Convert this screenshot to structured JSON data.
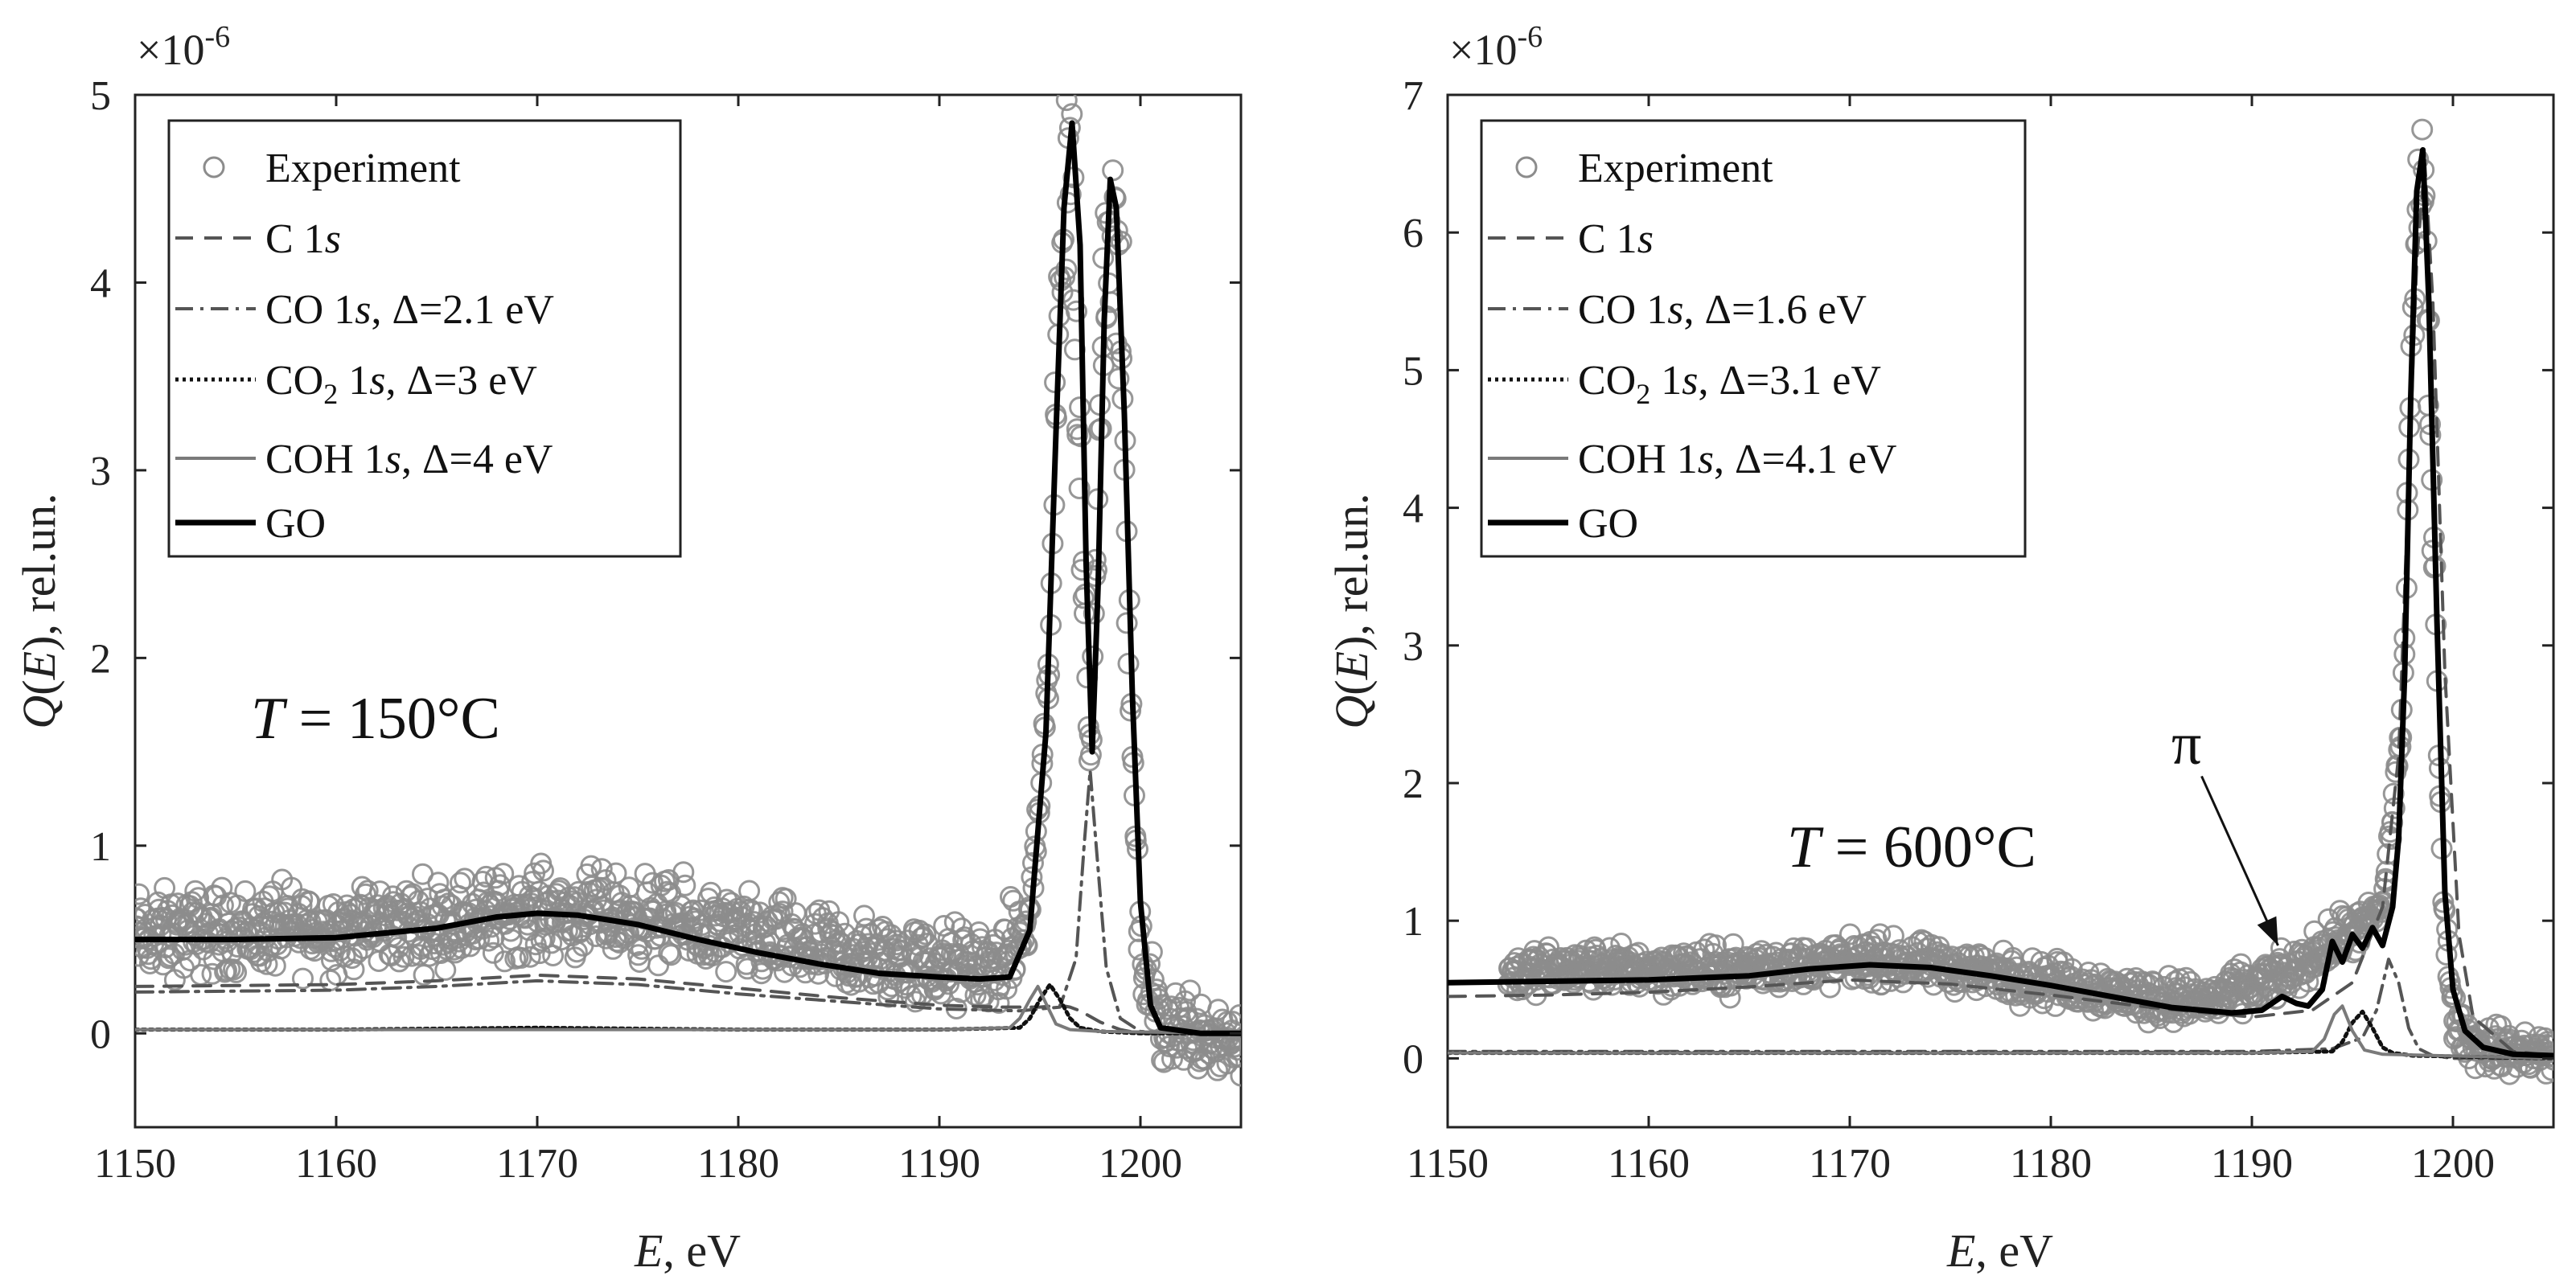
{
  "colors": {
    "experiment": "#8c8c8c",
    "go": "#000000",
    "c1s": "#555555",
    "co1s": "#555555",
    "co2_1s": "#111111",
    "coh1s": "#7a7a7a",
    "axis": "#222222"
  },
  "chart_data": [
    {
      "type": "scatter",
      "title": "",
      "xlabel_italic": "E",
      "xlabel_rest": ", eV",
      "ylabel_italic_1": "Q",
      "ylabel_mid": "(",
      "ylabel_italic_2": "E",
      "ylabel_rest": "), rel.un.",
      "y_multiplier": "×10",
      "y_multiplier_exp": "-6",
      "xlim": [
        1150,
        1205
      ],
      "ylim": [
        -0.5,
        5
      ],
      "xticks": [
        1150,
        1160,
        1170,
        1180,
        1190,
        1200
      ],
      "yticks": [
        0,
        1,
        2,
        3,
        4,
        5
      ],
      "legend_position": "top-left",
      "legend": {
        "experiment": "Experiment",
        "c1s_prefix": "C 1",
        "c1s_italic": "s",
        "co_prefix": "CO 1",
        "co_italic": "s",
        "co_suffix": ", Δ=2.1 eV",
        "co2_prefix": "CO",
        "co2_sub": "2",
        "co2_mid": " 1",
        "co2_italic": "s",
        "co2_suffix": ", Δ=3 eV",
        "coh_prefix": "COH 1",
        "coh_italic": "s",
        "coh_suffix": ", Δ=4 eV",
        "go": "GO"
      },
      "annotation": {
        "italic": "T",
        "rest": " = 150°C"
      },
      "experiment_envelope": {
        "x": [
          1150,
          1155,
          1160,
          1165,
          1170,
          1175,
          1180,
          1185,
          1190,
          1193,
          1194.5,
          1195.5,
          1196.0,
          1196.5,
          1197.0,
          1197.5,
          1198.0,
          1198.5,
          1199.0,
          1199.5,
          1200.0,
          1201,
          1203,
          1205
        ],
        "y": [
          0.52,
          0.55,
          0.56,
          0.6,
          0.65,
          0.62,
          0.52,
          0.42,
          0.36,
          0.35,
          0.6,
          2.0,
          4.0,
          4.8,
          3.0,
          1.4,
          3.5,
          4.5,
          3.9,
          1.8,
          0.4,
          0.05,
          0.02,
          -0.05
        ],
        "spread": 0.22
      },
      "series": [
        {
          "name": "GO",
          "style": "solid-thick",
          "x": [
            1150,
            1155,
            1160,
            1165,
            1168,
            1170,
            1172,
            1175,
            1178,
            1181,
            1184,
            1187,
            1190,
            1192,
            1193.5,
            1194.5,
            1195.3,
            1195.8,
            1196.2,
            1196.6,
            1197.0,
            1197.3,
            1197.6,
            1197.9,
            1198.2,
            1198.5,
            1198.8,
            1199.2,
            1199.6,
            1200.0,
            1200.5,
            1201.0,
            1203,
            1205
          ],
          "y": [
            0.5,
            0.5,
            0.51,
            0.56,
            0.62,
            0.64,
            0.63,
            0.58,
            0.5,
            0.43,
            0.37,
            0.32,
            0.3,
            0.29,
            0.3,
            0.55,
            1.6,
            3.2,
            4.4,
            4.85,
            4.2,
            2.5,
            1.5,
            2.4,
            3.8,
            4.55,
            4.4,
            3.3,
            1.8,
            0.7,
            0.15,
            0.03,
            0.0,
            0.0
          ]
        },
        {
          "name": "C 1s",
          "style": "dash",
          "x": [
            1150,
            1160,
            1165,
            1170,
            1175,
            1180,
            1185,
            1190,
            1193,
            1195,
            1196,
            1196.5,
            1197,
            1198,
            1199,
            1200,
            1202,
            1205
          ],
          "y": [
            0.25,
            0.26,
            0.28,
            0.31,
            0.29,
            0.24,
            0.19,
            0.15,
            0.14,
            0.14,
            0.15,
            0.14,
            0.12,
            0.06,
            0.02,
            0.0,
            0.0,
            0.0
          ]
        },
        {
          "name": "CO 1s",
          "style": "dashdot",
          "x": [
            1150,
            1160,
            1165,
            1170,
            1175,
            1180,
            1185,
            1190,
            1194,
            1196,
            1196.8,
            1197.2,
            1197.5,
            1197.8,
            1198.3,
            1199,
            1200,
            1202,
            1205
          ],
          "y": [
            0.22,
            0.23,
            0.25,
            0.28,
            0.26,
            0.21,
            0.17,
            0.13,
            0.12,
            0.14,
            0.4,
            1.0,
            1.4,
            1.0,
            0.35,
            0.08,
            0.01,
            0.0,
            0.0
          ]
        },
        {
          "name": "CO2 1s",
          "style": "dot",
          "x": [
            1150,
            1160,
            1170,
            1180,
            1190,
            1194.0,
            1194.5,
            1195.0,
            1195.5,
            1196.0,
            1196.5,
            1197.0,
            1198,
            1200,
            1205
          ],
          "y": [
            0.02,
            0.02,
            0.03,
            0.02,
            0.02,
            0.03,
            0.08,
            0.18,
            0.26,
            0.18,
            0.08,
            0.03,
            0.01,
            0.0,
            0.0
          ]
        },
        {
          "name": "COH 1s",
          "style": "solid-grey",
          "x": [
            1150,
            1160,
            1170,
            1180,
            1190,
            1193.5,
            1194.0,
            1194.5,
            1194.9,
            1195.3,
            1195.8,
            1196.5,
            1198,
            1205
          ],
          "y": [
            0.02,
            0.02,
            0.02,
            0.02,
            0.02,
            0.03,
            0.08,
            0.18,
            0.25,
            0.16,
            0.05,
            0.02,
            0.01,
            0.0
          ]
        }
      ]
    },
    {
      "type": "scatter",
      "title": "",
      "xlabel_italic": "E",
      "xlabel_rest": ", eV",
      "ylabel_italic_1": "Q",
      "ylabel_mid": "(",
      "ylabel_italic_2": "E",
      "ylabel_rest": "), rel.un.",
      "y_multiplier": "×10",
      "y_multiplier_exp": "-6",
      "xlim": [
        1150,
        1205
      ],
      "ylim": [
        -0.5,
        7
      ],
      "xticks": [
        1150,
        1160,
        1170,
        1180,
        1190,
        1200
      ],
      "yticks": [
        0,
        1,
        2,
        3,
        4,
        5,
        6,
        7
      ],
      "legend_position": "top-left",
      "legend": {
        "experiment": "Experiment",
        "c1s_prefix": "C 1",
        "c1s_italic": "s",
        "co_prefix": "CO 1",
        "co_italic": "s",
        "co_suffix": ", Δ=1.6 eV",
        "co2_prefix": "CO",
        "co2_sub": "2",
        "co2_mid": " 1",
        "co2_italic": "s",
        "co2_suffix": ", Δ=3.1 eV",
        "coh_prefix": "COH 1",
        "coh_italic": "s",
        "coh_suffix": ", Δ=4.1 eV",
        "go": "GO"
      },
      "annotation": {
        "italic": "T",
        "rest": " = 600°C"
      },
      "pi_label": "π",
      "pi_arrow": {
        "from": [
          1187.5,
          2.05
        ],
        "to": [
          1191.3,
          0.82
        ]
      },
      "experiment_envelope": {
        "x": [
          1153,
          1158,
          1163,
          1168,
          1171,
          1175,
          1180,
          1185,
          1188,
          1190,
          1192,
          1194,
          1195.5,
          1196.5,
          1197.5,
          1198.0,
          1198.5,
          1199.0,
          1199.5,
          1200.0,
          1201,
          1203,
          1205
        ],
        "y": [
          0.62,
          0.66,
          0.64,
          0.68,
          0.72,
          0.66,
          0.56,
          0.44,
          0.42,
          0.52,
          0.62,
          0.85,
          0.95,
          1.1,
          2.5,
          5.5,
          6.6,
          4.0,
          1.2,
          0.3,
          0.1,
          0.05,
          0.02
        ],
        "spread": 0.16
      },
      "series": [
        {
          "name": "GO",
          "style": "solid-thick",
          "x": [
            1150,
            1155,
            1160,
            1165,
            1168,
            1171,
            1174,
            1177,
            1180,
            1183,
            1186,
            1189,
            1190.5,
            1191.5,
            1192.2,
            1192.8,
            1193.5,
            1194.0,
            1194.5,
            1195.0,
            1195.5,
            1196.0,
            1196.5,
            1197.0,
            1197.3,
            1197.6,
            1197.9,
            1198.2,
            1198.5,
            1198.8,
            1199.2,
            1199.6,
            1200.0,
            1200.6,
            1201.5,
            1203,
            1205
          ],
          "y": [
            0.55,
            0.56,
            0.57,
            0.6,
            0.65,
            0.68,
            0.66,
            0.6,
            0.53,
            0.45,
            0.37,
            0.33,
            0.35,
            0.45,
            0.4,
            0.38,
            0.5,
            0.85,
            0.7,
            0.9,
            0.8,
            0.95,
            0.82,
            1.1,
            1.6,
            2.8,
            4.8,
            6.3,
            6.6,
            5.5,
            3.2,
            1.2,
            0.5,
            0.2,
            0.08,
            0.03,
            0.02
          ]
        },
        {
          "name": "C 1s",
          "style": "dash",
          "x": [
            1150,
            1155,
            1160,
            1165,
            1170,
            1175,
            1180,
            1185,
            1190,
            1193,
            1195,
            1196.5,
            1197.3,
            1197.8,
            1198.2,
            1198.6,
            1199,
            1199.6,
            1200.3,
            1201,
            1203,
            1205
          ],
          "y": [
            0.45,
            0.46,
            0.48,
            0.52,
            0.57,
            0.54,
            0.46,
            0.37,
            0.3,
            0.35,
            0.55,
            1.1,
            2.2,
            4.2,
            5.8,
            6.5,
            5.5,
            2.8,
            0.9,
            0.3,
            0.05,
            0.02
          ]
        },
        {
          "name": "CO 1s",
          "style": "dashdot",
          "x": [
            1150,
            1160,
            1170,
            1180,
            1190,
            1194,
            1195.5,
            1196.2,
            1196.8,
            1197.3,
            1197.8,
            1198.3,
            1199,
            1200,
            1205
          ],
          "y": [
            0.05,
            0.05,
            0.05,
            0.05,
            0.05,
            0.07,
            0.15,
            0.35,
            0.72,
            0.55,
            0.22,
            0.07,
            0.02,
            0.0,
            0.0
          ]
        },
        {
          "name": "CO2 1s",
          "style": "dot",
          "x": [
            1150,
            1160,
            1170,
            1180,
            1190,
            1194.0,
            1194.5,
            1195.0,
            1195.5,
            1196.0,
            1196.5,
            1197.0,
            1198,
            1205
          ],
          "y": [
            0.04,
            0.04,
            0.04,
            0.04,
            0.04,
            0.05,
            0.12,
            0.26,
            0.34,
            0.22,
            0.08,
            0.04,
            0.02,
            0.0
          ]
        },
        {
          "name": "COH 1s",
          "style": "solid-grey",
          "x": [
            1150,
            1160,
            1170,
            1180,
            1190,
            1193.0,
            1193.6,
            1194.1,
            1194.5,
            1195.0,
            1195.6,
            1196.5,
            1205
          ],
          "y": [
            0.04,
            0.04,
            0.04,
            0.04,
            0.04,
            0.05,
            0.14,
            0.32,
            0.38,
            0.2,
            0.06,
            0.03,
            0.0
          ]
        }
      ]
    }
  ]
}
